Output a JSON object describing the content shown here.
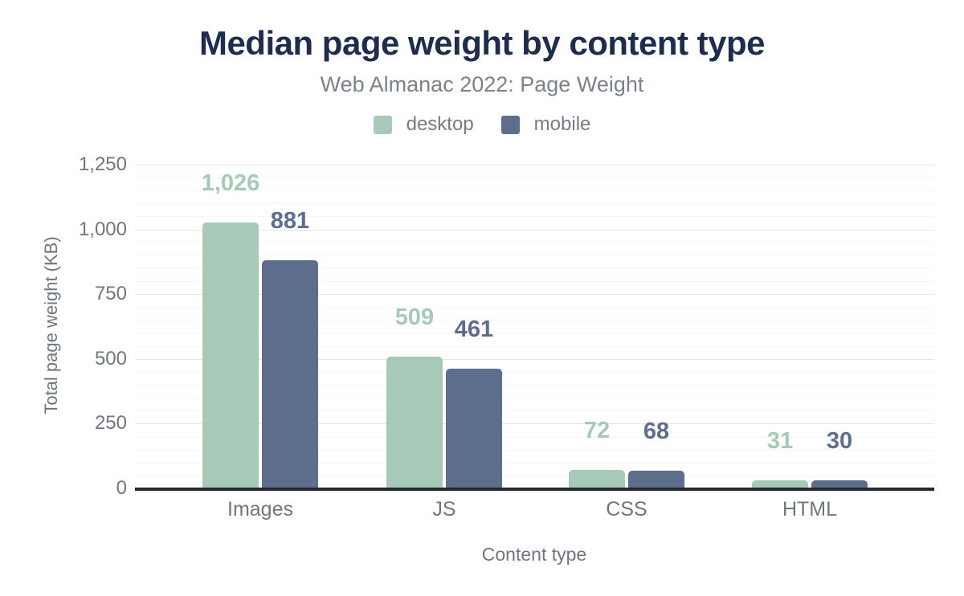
{
  "title": "Median page weight by content type",
  "subtitle": "Web Almanac 2022: Page Weight",
  "colors": {
    "title_text": "#1e2c4e",
    "muted_text": "#757c84",
    "desktop": "#a7c9b8",
    "mobile": "#5d6e8c",
    "axis_line": "#26292f",
    "major_gridline": "#e6e6e6",
    "minor_gridline": "#f5f5f5",
    "background": "#ffffff"
  },
  "legend": {
    "position": "top",
    "items": [
      {
        "label": "desktop",
        "color": "#a7c9b8"
      },
      {
        "label": "mobile",
        "color": "#5d6e8c"
      }
    ]
  },
  "chart_data": {
    "type": "bar",
    "title": "Median page weight by content type",
    "subtitle": "Web Almanac 2022: Page Weight",
    "categories": [
      "Images",
      "JS",
      "CSS",
      "HTML"
    ],
    "series": [
      {
        "name": "desktop",
        "color": "#a7c9b8",
        "values": [
          1026,
          509,
          72,
          31
        ],
        "labels": [
          "1,026",
          "509",
          "72",
          "31"
        ]
      },
      {
        "name": "mobile",
        "color": "#5d6e8c",
        "values": [
          881,
          461,
          68,
          30
        ],
        "labels": [
          "881",
          "461",
          "68",
          "30"
        ]
      }
    ],
    "xlabel": "Content type",
    "ylabel": "Total page weight (KB)",
    "ylim": [
      0,
      1250
    ],
    "yticks": [
      0,
      250,
      500,
      750,
      1000,
      1250
    ],
    "ytick_labels": [
      "0",
      "250",
      "500",
      "750",
      "1,000",
      "1,250"
    ],
    "minor_grid_step": 50,
    "grid": true,
    "legend_position": "top",
    "data_labels": true
  }
}
